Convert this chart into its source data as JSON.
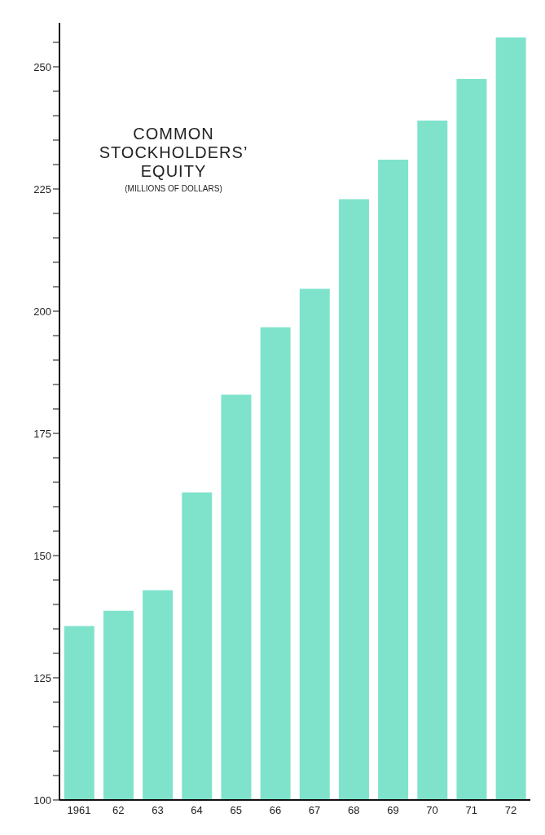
{
  "chart_data": {
    "type": "bar",
    "title": "COMMON STOCKHOLDERS’ EQUITY",
    "subtitle": "(MILLIONS OF DOLLARS)",
    "categories": [
      "1961",
      "62",
      "63",
      "64",
      "65",
      "66",
      "67",
      "68",
      "69",
      "70",
      "71",
      "72"
    ],
    "values": [
      135.6,
      138.7,
      142.9,
      162.9,
      182.9,
      196.7,
      204.6,
      222.9,
      231,
      239,
      247.5,
      256
    ],
    "color": "#7fe3cc",
    "ylim": [
      100,
      259
    ],
    "yticks": [
      100,
      {
        "value": 105,
        "label": null
      },
      {
        "value": 110,
        "label": null
      },
      {
        "value": 115,
        "label": null
      },
      {
        "value": 120,
        "label": null
      },
      125,
      {
        "value": 130,
        "label": null
      },
      {
        "value": 135,
        "label": null
      },
      {
        "value": 140,
        "label": null
      },
      {
        "value": 145,
        "label": null
      },
      150,
      {
        "value": 155,
        "label": null
      },
      {
        "value": 160,
        "label": null
      },
      {
        "value": 165,
        "label": null
      },
      {
        "value": 170,
        "label": null
      },
      175,
      {
        "value": 180,
        "label": null
      },
      {
        "value": 185,
        "label": null
      },
      {
        "value": 190,
        "label": null
      },
      {
        "value": 195,
        "label": null
      },
      200,
      {
        "value": 205,
        "label": null
      },
      {
        "value": 210,
        "label": null
      },
      {
        "value": 215,
        "label": null
      },
      {
        "value": 220,
        "label": null
      },
      225,
      {
        "value": 230,
        "label": null
      },
      {
        "value": 235,
        "label": null
      },
      {
        "value": 240,
        "label": null
      },
      {
        "value": 245,
        "label": null
      },
      250,
      {
        "value": 255,
        "label": null
      }
    ],
    "grid": false,
    "legend": false
  }
}
